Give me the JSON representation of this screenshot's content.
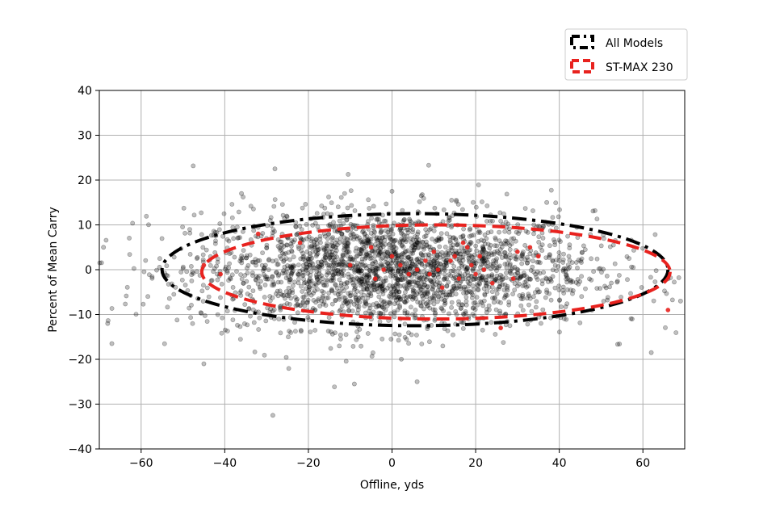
{
  "chart_data": {
    "type": "scatter",
    "xlabel": "Offline, yds",
    "ylabel": "Percent of Mean Carry",
    "xlim": [
      -70,
      70
    ],
    "ylim": [
      -40,
      40
    ],
    "xticks": [
      -60,
      -40,
      -20,
      0,
      20,
      40,
      60
    ],
    "yticks": [
      -40,
      -30,
      -20,
      -10,
      0,
      10,
      20,
      30,
      40
    ],
    "grid": true,
    "legend_position": "top-right, outside plot",
    "series": [
      {
        "name": "All Models",
        "color": "#000000",
        "marker_opacity": 0.25,
        "n_points_approx": 2500,
        "x_mean": 0,
        "x_sd": 24,
        "y_mean": 0,
        "y_sd": 6.5,
        "outliers": [
          [
            -28,
            22.5
          ],
          [
            -28.5,
            -32.5
          ],
          [
            0,
            17.5
          ],
          [
            -9,
            -25.5
          ],
          [
            6,
            -25
          ],
          [
            -69,
            5
          ],
          [
            -68,
            -12
          ],
          [
            69,
            -7
          ],
          [
            -67,
            -16.5
          ],
          [
            62,
            -18.5
          ],
          [
            -45,
            -21
          ],
          [
            -36,
            17
          ],
          [
            7,
            16.5
          ],
          [
            37,
            15
          ]
        ],
        "confidence_ellipse": {
          "center": [
            5.5,
            0
          ],
          "semi_axis_x": 60.5,
          "semi_axis_y": 12.5,
          "style": "dash-dot"
        }
      },
      {
        "name": "ST-MAX 230",
        "color": "#e8221e",
        "marker_opacity": 0.9,
        "points": [
          [
            -45,
            1
          ],
          [
            -41,
            -1
          ],
          [
            -32,
            8
          ],
          [
            -22,
            6
          ],
          [
            -10,
            1
          ],
          [
            -5,
            5
          ],
          [
            -4,
            -2
          ],
          [
            -2,
            0
          ],
          [
            0,
            3
          ],
          [
            2,
            1
          ],
          [
            4,
            -1
          ],
          [
            6,
            0
          ],
          [
            8,
            2
          ],
          [
            9,
            -1
          ],
          [
            10,
            4
          ],
          [
            11,
            0
          ],
          [
            12,
            -4
          ],
          [
            14,
            2
          ],
          [
            15,
            3
          ],
          [
            16,
            -2
          ],
          [
            17,
            6
          ],
          [
            18,
            5
          ],
          [
            19,
            1
          ],
          [
            20,
            -1
          ],
          [
            21,
            3
          ],
          [
            22,
            0
          ],
          [
            24,
            -3
          ],
          [
            26,
            -13
          ],
          [
            29,
            -2
          ],
          [
            30,
            4
          ],
          [
            33,
            5
          ],
          [
            35,
            3
          ],
          [
            66,
            -9
          ]
        ],
        "confidence_ellipse": {
          "center": [
            10.5,
            -0.5
          ],
          "semi_axis_x": 56,
          "semi_axis_y": 10.5,
          "style": "dashed"
        }
      }
    ]
  }
}
